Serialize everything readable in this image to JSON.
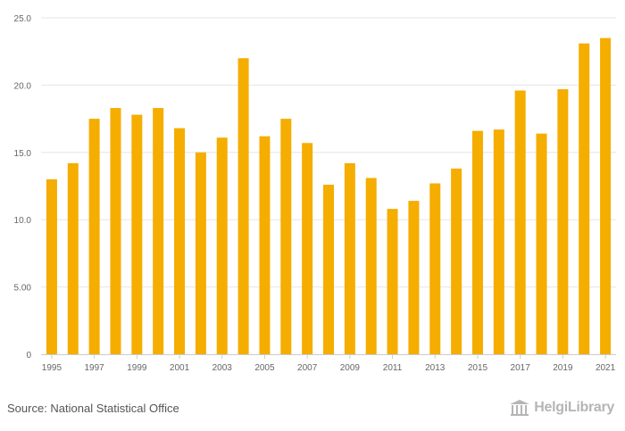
{
  "chart_data": {
    "type": "bar",
    "categories": [
      "1995",
      "1996",
      "1997",
      "1998",
      "1999",
      "2000",
      "2001",
      "2002",
      "2003",
      "2004",
      "2005",
      "2006",
      "2007",
      "2008",
      "2009",
      "2010",
      "2011",
      "2012",
      "2013",
      "2014",
      "2015",
      "2016",
      "2017",
      "2018",
      "2019",
      "2020",
      "2021"
    ],
    "values": [
      13.0,
      14.2,
      17.5,
      18.3,
      17.8,
      18.3,
      16.8,
      15.0,
      16.1,
      22.0,
      16.2,
      17.5,
      15.7,
      12.6,
      14.2,
      13.1,
      10.8,
      11.4,
      12.7,
      13.8,
      16.6,
      16.7,
      19.6,
      16.4,
      19.7,
      23.1,
      23.5
    ],
    "x_tick_labels": [
      "1995",
      "1997",
      "1999",
      "2001",
      "2003",
      "2005",
      "2007",
      "2009",
      "2011",
      "2013",
      "2015",
      "2017",
      "2019",
      "2021"
    ],
    "y_ticks": [
      0,
      5,
      10,
      15,
      20,
      25
    ],
    "y_tick_labels": [
      "0",
      "5.00",
      "10.0",
      "15.0",
      "20.0",
      "25.0"
    ],
    "ylim": [
      0,
      25
    ],
    "title": "",
    "xlabel": "",
    "ylabel": "",
    "grid": true,
    "bar_color": "#f5ad00"
  },
  "footer": {
    "source": "Source: National Statistical Office",
    "logo_text": "HelgiLibrary"
  },
  "colors": {
    "grid": "#e6e6e6",
    "axis": "#cccccc",
    "logo": "#b5b5b5"
  }
}
